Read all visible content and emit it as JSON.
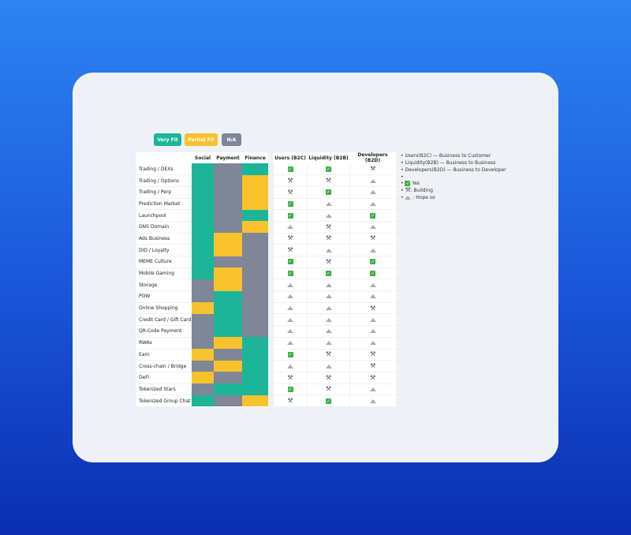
{
  "legend": {
    "very_fit": "Very Fit",
    "partial_fit": "Partial Fit",
    "na": "N/A"
  },
  "colors": {
    "V": "#1db59a",
    "P": "#f8c22c",
    "N": "#7e8697",
    "yes": "#3cb043"
  },
  "headers": {
    "fit": [
      "Social",
      "Payment",
      "Finance"
    ],
    "status": [
      "Users (B2C)",
      "Liquidity (B2B)",
      "Developers (B2D)"
    ]
  },
  "rows": [
    {
      "name": "Trading / DEXs",
      "fit": [
        "V",
        "N",
        "V"
      ],
      "status": [
        "Y",
        "Y",
        "B"
      ]
    },
    {
      "name": "Trading / Options",
      "fit": [
        "V",
        "N",
        "P"
      ],
      "status": [
        "B",
        "B",
        "H"
      ]
    },
    {
      "name": "Trading / Perp",
      "fit": [
        "V",
        "N",
        "P"
      ],
      "status": [
        "B",
        "Y",
        "H"
      ]
    },
    {
      "name": "Prediction Market",
      "fit": [
        "V",
        "N",
        "P"
      ],
      "status": [
        "Y",
        "H",
        "H"
      ]
    },
    {
      "name": "Launchpool",
      "fit": [
        "V",
        "N",
        "V"
      ],
      "status": [
        "Y",
        "H",
        "Y"
      ]
    },
    {
      "name": "DNS Domain",
      "fit": [
        "V",
        "N",
        "P"
      ],
      "status": [
        "H",
        "B",
        "H"
      ]
    },
    {
      "name": "Ads Business",
      "fit": [
        "V",
        "P",
        "N"
      ],
      "status": [
        "B",
        "B",
        "B"
      ]
    },
    {
      "name": "DID / Loyalty",
      "fit": [
        "V",
        "P",
        "N"
      ],
      "status": [
        "B",
        "H",
        "H"
      ]
    },
    {
      "name": "MEME Culture",
      "fit": [
        "V",
        "N",
        "N"
      ],
      "status": [
        "Y",
        "B",
        "Y"
      ]
    },
    {
      "name": "Mobile Gaming",
      "fit": [
        "V",
        "P",
        "N"
      ],
      "status": [
        "Y",
        "Y",
        "Y"
      ]
    },
    {
      "name": "Storage",
      "fit": [
        "N",
        "P",
        "N"
      ],
      "status": [
        "H",
        "H",
        "H"
      ]
    },
    {
      "name": "POW",
      "fit": [
        "N",
        "V",
        "N"
      ],
      "status": [
        "H",
        "H",
        "H"
      ]
    },
    {
      "name": "Online Shopping",
      "fit": [
        "P",
        "V",
        "N"
      ],
      "status": [
        "H",
        "H",
        "B"
      ]
    },
    {
      "name": "Credit Card / Gift Card",
      "fit": [
        "N",
        "V",
        "N"
      ],
      "status": [
        "H",
        "H",
        "H"
      ]
    },
    {
      "name": "QR-Code Payment",
      "fit": [
        "N",
        "V",
        "N"
      ],
      "status": [
        "H",
        "H",
        "H"
      ]
    },
    {
      "name": "RWAs",
      "fit": [
        "N",
        "P",
        "V"
      ],
      "status": [
        "H",
        "H",
        "H"
      ]
    },
    {
      "name": "Earn",
      "fit": [
        "P",
        "N",
        "V"
      ],
      "status": [
        "Y",
        "B",
        "B"
      ]
    },
    {
      "name": "Cross-chain / Bridge",
      "fit": [
        "N",
        "P",
        "V"
      ],
      "status": [
        "H",
        "H",
        "B"
      ]
    },
    {
      "name": "DeFi",
      "fit": [
        "P",
        "N",
        "V"
      ],
      "status": [
        "B",
        "B",
        "B"
      ]
    },
    {
      "name": "Tokenized Stars",
      "fit": [
        "N",
        "V",
        "V"
      ],
      "status": [
        "Y",
        "B",
        "H"
      ]
    },
    {
      "name": "Tokenized Group Chat",
      "fit": [
        "V",
        "N",
        "P"
      ],
      "status": [
        "B",
        "Y",
        "H"
      ]
    }
  ],
  "notes": [
    "Users(B2C) — Business to Customer",
    "Liquidity(B2B) — Business to Business",
    "Developers(B2D) — Business to Developer"
  ],
  "icon_legend": {
    "yes": "Yes",
    "building": ": Building",
    "hope": ": Hope so"
  }
}
